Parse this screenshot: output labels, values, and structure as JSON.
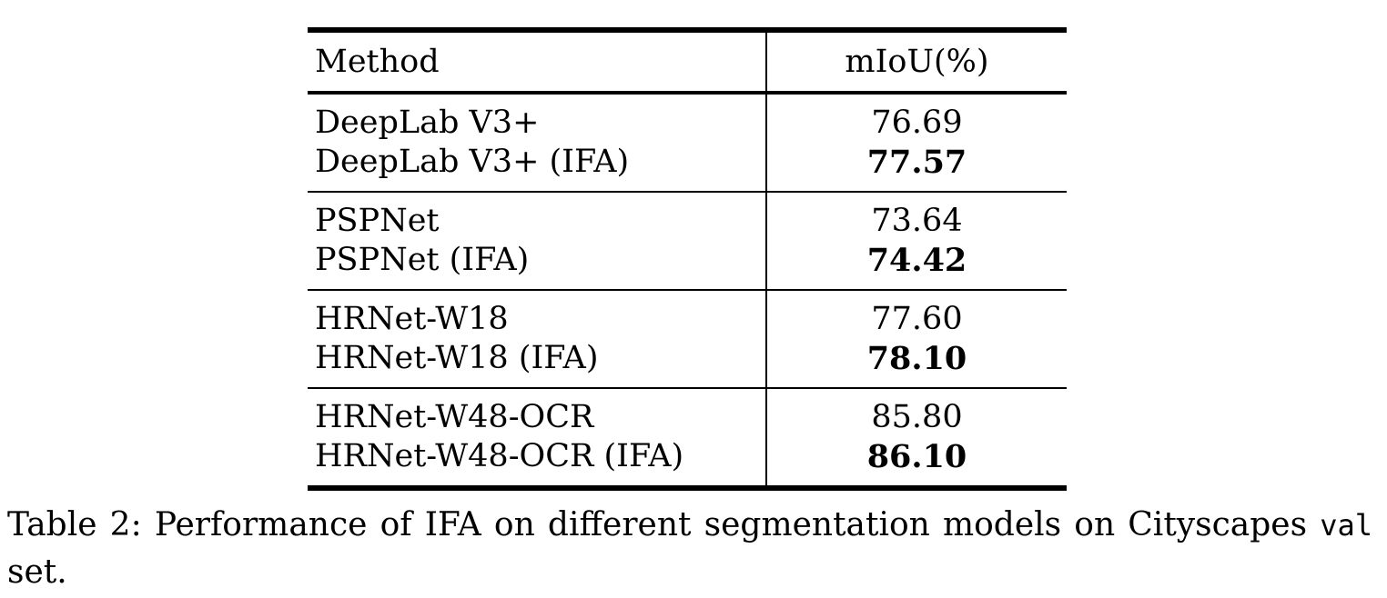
{
  "table": {
    "headers": {
      "method": "Method",
      "miou": "mIoU(%)"
    },
    "groups": [
      {
        "rows": [
          {
            "method": "DeepLab V3+",
            "miou": "76.69",
            "bold": false
          },
          {
            "method": "DeepLab V3+ (IFA)",
            "miou": "77.57",
            "bold": true
          }
        ]
      },
      {
        "rows": [
          {
            "method": "PSPNet",
            "miou": "73.64",
            "bold": false
          },
          {
            "method": "PSPNet (IFA)",
            "miou": "74.42",
            "bold": true
          }
        ]
      },
      {
        "rows": [
          {
            "method": "HRNet-W18",
            "miou": "77.60",
            "bold": false
          },
          {
            "method": "HRNet-W18 (IFA)",
            "miou": "78.10",
            "bold": true
          }
        ]
      },
      {
        "rows": [
          {
            "method": "HRNet-W48-OCR",
            "miou": "85.80",
            "bold": false
          },
          {
            "method": "HRNet-W48-OCR (IFA)",
            "miou": "86.10",
            "bold": true
          }
        ]
      }
    ]
  },
  "caption": {
    "label": "Table 2:",
    "text_before": "Performance of IFA on different segmentation models on Cityscapes",
    "code": "val",
    "text_after": "set."
  }
}
